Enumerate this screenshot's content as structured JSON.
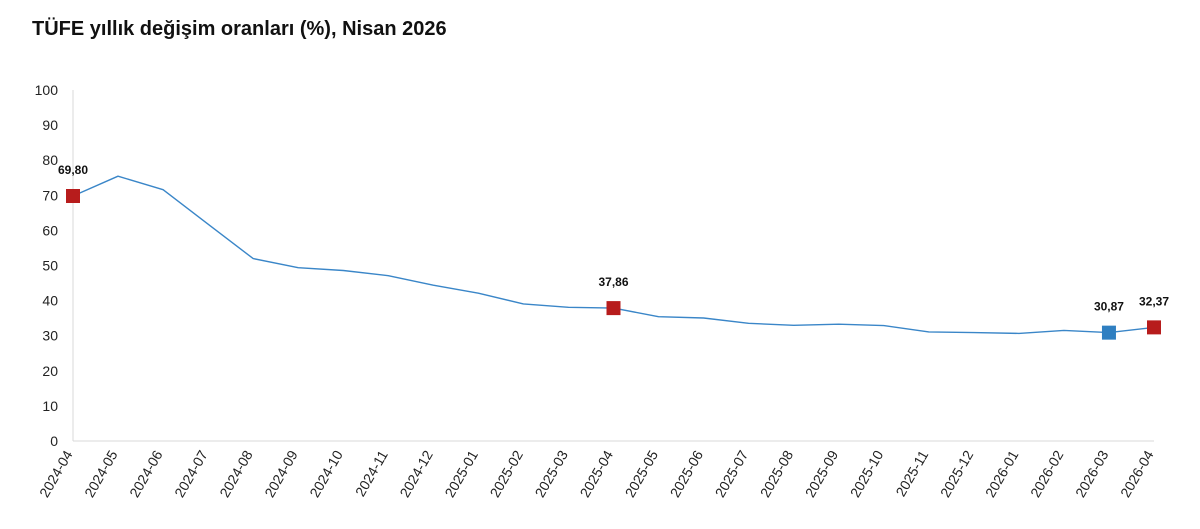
{
  "chart_data": {
    "type": "line",
    "title": "TÜFE yıllık değişim oranları (%), Nisan 2026",
    "xlabel": "",
    "ylabel": "",
    "ylim": [
      0,
      100
    ],
    "yticks": [
      0,
      10,
      20,
      30,
      40,
      50,
      60,
      70,
      80,
      90,
      100
    ],
    "grid": false,
    "categories": [
      "2024-04",
      "2024-05",
      "2024-06",
      "2024-07",
      "2024-08",
      "2024-09",
      "2024-10",
      "2024-11",
      "2024-12",
      "2025-01",
      "2025-02",
      "2025-03",
      "2025-04",
      "2025-05",
      "2025-06",
      "2025-07",
      "2025-08",
      "2025-09",
      "2025-10",
      "2025-11",
      "2025-12",
      "2026-01",
      "2026-02",
      "2026-03",
      "2026-04"
    ],
    "series": [
      {
        "color": "#3a86c8",
        "values": [
          69.8,
          75.45,
          71.6,
          61.78,
          51.97,
          49.38,
          48.58,
          47.09,
          44.38,
          42.12,
          39.05,
          38.1,
          37.86,
          35.41,
          35.05,
          33.52,
          32.95,
          33.29,
          32.87,
          31.07,
          30.89,
          30.65,
          31.5,
          30.87,
          32.37
        ]
      }
    ],
    "markers": [
      {
        "index": 0,
        "label": "69,80",
        "color": "#b71c1c"
      },
      {
        "index": 12,
        "label": "37,86",
        "color": "#b71c1c"
      },
      {
        "index": 23,
        "label": "30,87",
        "color": "#2f7fc1"
      },
      {
        "index": 24,
        "label": "32,37",
        "color": "#b71c1c"
      }
    ]
  }
}
